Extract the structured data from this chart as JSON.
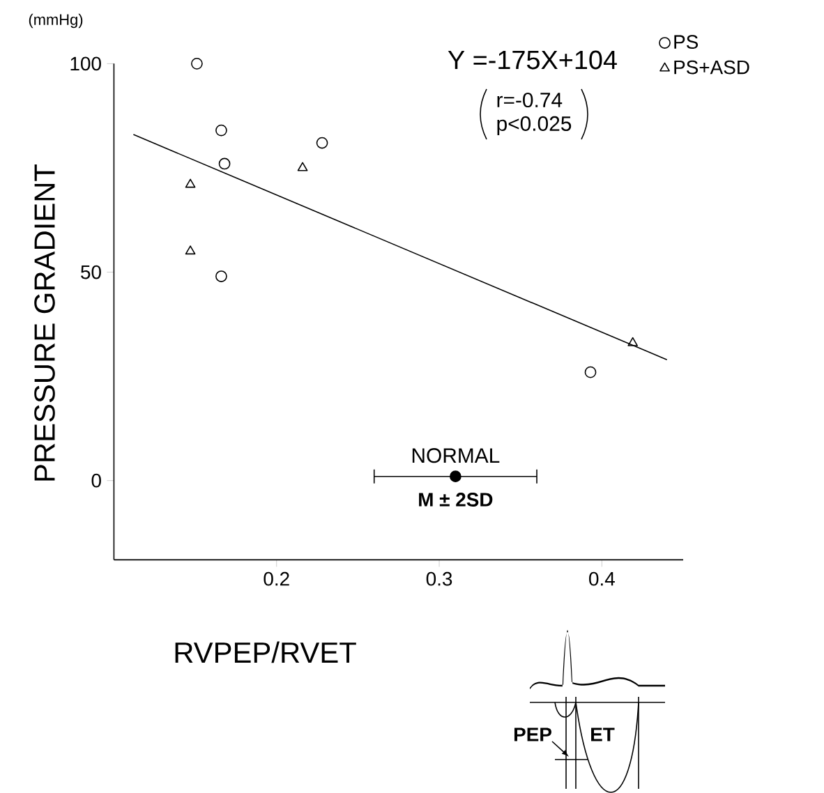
{
  "chart_data": {
    "type": "scatter",
    "xlabel": "RVPEP/RVET",
    "ylabel": "PRESSURE GRADIENT",
    "xlim": [
      0.1,
      0.45
    ],
    "ylim": [
      -19,
      100
    ],
    "xticks": [
      0.2,
      0.3,
      0.4
    ],
    "yticks": [
      0,
      50,
      100
    ],
    "legend": "top right",
    "grid": false,
    "series": [
      {
        "name": "PS",
        "type": "scatter",
        "marker": "circle",
        "color": "#000000",
        "x": [
          0.151,
          0.166,
          0.168,
          0.228,
          0.166,
          0.393
        ],
        "values": [
          100,
          84,
          76,
          81,
          49,
          26
        ]
      },
      {
        "name": "PS+ASD",
        "type": "scatter",
        "marker": "triangle",
        "color": "#000000",
        "x": [
          0.147,
          0.216,
          0.147,
          0.419
        ],
        "values": [
          71,
          75,
          55,
          33
        ]
      },
      {
        "type": "line",
        "marker": "none",
        "color": "#000000",
        "x": [
          0.112,
          0.44
        ],
        "values": [
          83,
          29
        ]
      },
      {
        "name": "NORMAL",
        "type": "scatter",
        "marker": "circle",
        "color": "#000000",
        "x": [
          0.31
        ],
        "values": [
          1
        ],
        "xerrors": [
          0.05
        ]
      }
    ],
    "annotations": [
      "(mmHg)",
      "Y =-175X+104",
      "r=-0.74",
      "p<0.025",
      {
        "text": "M ± 2SD",
        "x": 0.31,
        "y": 1
      },
      "PEP",
      "ET"
    ]
  }
}
